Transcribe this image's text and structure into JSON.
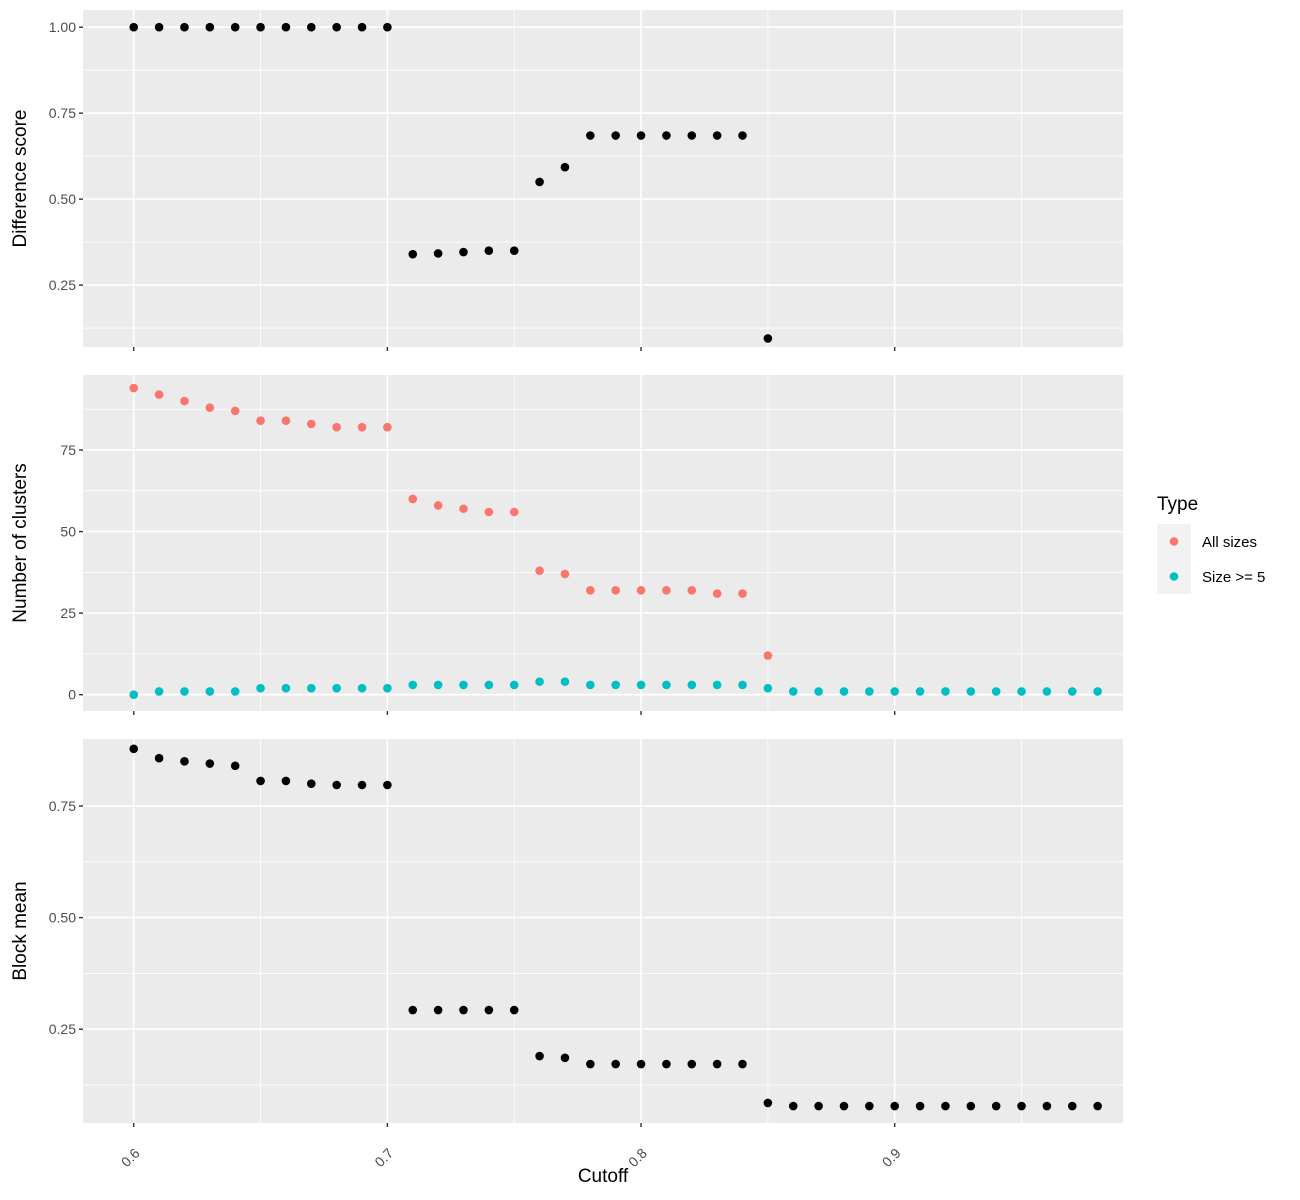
{
  "chart_data": {
    "type": "scatter",
    "xlabel": "Cutoff",
    "xlim": [
      0.58,
      0.99
    ],
    "x_ticks": [
      0.6,
      0.7,
      0.8,
      0.9
    ],
    "x_tick_labels": [
      "0.6",
      "0.7",
      "0.8",
      "0.9"
    ],
    "x_minor_breaks": [
      0.65,
      0.75,
      0.85,
      0.95
    ],
    "grid": true,
    "legend": {
      "title": "Type",
      "position": "right",
      "entries": [
        {
          "label": "All sizes",
          "color": "#F8766D"
        },
        {
          "label": "Size >= 5",
          "color": "#00BFC4"
        }
      ]
    },
    "panels": [
      {
        "ylabel": "Difference score",
        "ylim": [
          0.07,
          1.05
        ],
        "y_ticks": [
          0.25,
          0.5,
          0.75,
          1.0
        ],
        "y_tick_labels": [
          "0.25",
          "0.50",
          "0.75",
          "1.00"
        ],
        "y_minor_breaks": [
          0.125,
          0.375,
          0.625,
          0.875
        ],
        "series": [
          {
            "color": "#000000",
            "x": [
              0.6,
              0.61,
              0.62,
              0.63,
              0.64,
              0.65,
              0.66,
              0.67,
              0.68,
              0.69,
              0.7,
              0.71,
              0.72,
              0.73,
              0.74,
              0.75,
              0.76,
              0.77,
              0.78,
              0.79,
              0.8,
              0.81,
              0.82,
              0.83,
              0.84,
              0.85
            ],
            "y": [
              1.0,
              1.0,
              1.0,
              1.0,
              1.0,
              1.0,
              1.0,
              1.0,
              1.0,
              1.0,
              1.0,
              0.34,
              0.342,
              0.346,
              0.35,
              0.35,
              0.55,
              0.593,
              0.685,
              0.685,
              0.685,
              0.685,
              0.685,
              0.685,
              0.685,
              0.095
            ]
          }
        ]
      },
      {
        "ylabel": "Number of clusters",
        "ylim": [
          -5,
          98
        ],
        "y_ticks": [
          0,
          25,
          50,
          75
        ],
        "y_tick_labels": [
          "0",
          "25",
          "50",
          "75"
        ],
        "y_minor_breaks": [
          12.5,
          37.5,
          62.5,
          87.5
        ],
        "series": [
          {
            "name": "All sizes",
            "color": "#F8766D",
            "x": [
              0.6,
              0.61,
              0.62,
              0.63,
              0.64,
              0.65,
              0.66,
              0.67,
              0.68,
              0.69,
              0.7,
              0.71,
              0.72,
              0.73,
              0.74,
              0.75,
              0.76,
              0.77,
              0.78,
              0.79,
              0.8,
              0.81,
              0.82,
              0.83,
              0.84,
              0.85
            ],
            "y": [
              94,
              92,
              90,
              88,
              87,
              84,
              84,
              83,
              82,
              82,
              82,
              60,
              58,
              57,
              56,
              56,
              38,
              37,
              32,
              32,
              32,
              32,
              32,
              31,
              31,
              12
            ]
          },
          {
            "name": "Size >= 5",
            "color": "#00BFC4",
            "x": [
              0.6,
              0.61,
              0.62,
              0.63,
              0.64,
              0.65,
              0.66,
              0.67,
              0.68,
              0.69,
              0.7,
              0.71,
              0.72,
              0.73,
              0.74,
              0.75,
              0.76,
              0.77,
              0.78,
              0.79,
              0.8,
              0.81,
              0.82,
              0.83,
              0.84,
              0.85,
              0.86,
              0.87,
              0.88,
              0.89,
              0.9,
              0.91,
              0.92,
              0.93,
              0.94,
              0.95,
              0.96,
              0.97,
              0.98
            ],
            "y": [
              0,
              1,
              1,
              1,
              1,
              2,
              2,
              2,
              2,
              2,
              2,
              3,
              3,
              3,
              3,
              3,
              4,
              4,
              3,
              3,
              3,
              3,
              3,
              3,
              3,
              2,
              1,
              1,
              1,
              1,
              1,
              1,
              1,
              1,
              1,
              1,
              1,
              1,
              1
            ]
          }
        ]
      },
      {
        "ylabel": "Block mean",
        "ylim": [
          0.04,
          0.9
        ],
        "y_ticks": [
          0.25,
          0.5,
          0.75
        ],
        "y_tick_labels": [
          "0.25",
          "0.50",
          "0.75"
        ],
        "y_minor_breaks": [
          0.125,
          0.375,
          0.625
        ],
        "series": [
          {
            "color": "#000000",
            "x": [
              0.6,
              0.61,
              0.62,
              0.63,
              0.64,
              0.65,
              0.66,
              0.67,
              0.68,
              0.69,
              0.7,
              0.71,
              0.72,
              0.73,
              0.74,
              0.75,
              0.76,
              0.77,
              0.78,
              0.79,
              0.8,
              0.81,
              0.82,
              0.83,
              0.84,
              0.85,
              0.86,
              0.87,
              0.88,
              0.89,
              0.9,
              0.91,
              0.92,
              0.93,
              0.94,
              0.95,
              0.96,
              0.97,
              0.98
            ],
            "y": [
              0.878,
              0.857,
              0.85,
              0.845,
              0.84,
              0.806,
              0.806,
              0.8,
              0.797,
              0.797,
              0.797,
              0.293,
              0.293,
              0.293,
              0.293,
              0.293,
              0.19,
              0.186,
              0.172,
              0.172,
              0.172,
              0.172,
              0.172,
              0.172,
              0.172,
              0.085,
              0.078,
              0.078,
              0.078,
              0.078,
              0.078,
              0.078,
              0.078,
              0.078,
              0.078,
              0.078,
              0.078,
              0.078,
              0.078
            ]
          }
        ]
      }
    ]
  }
}
